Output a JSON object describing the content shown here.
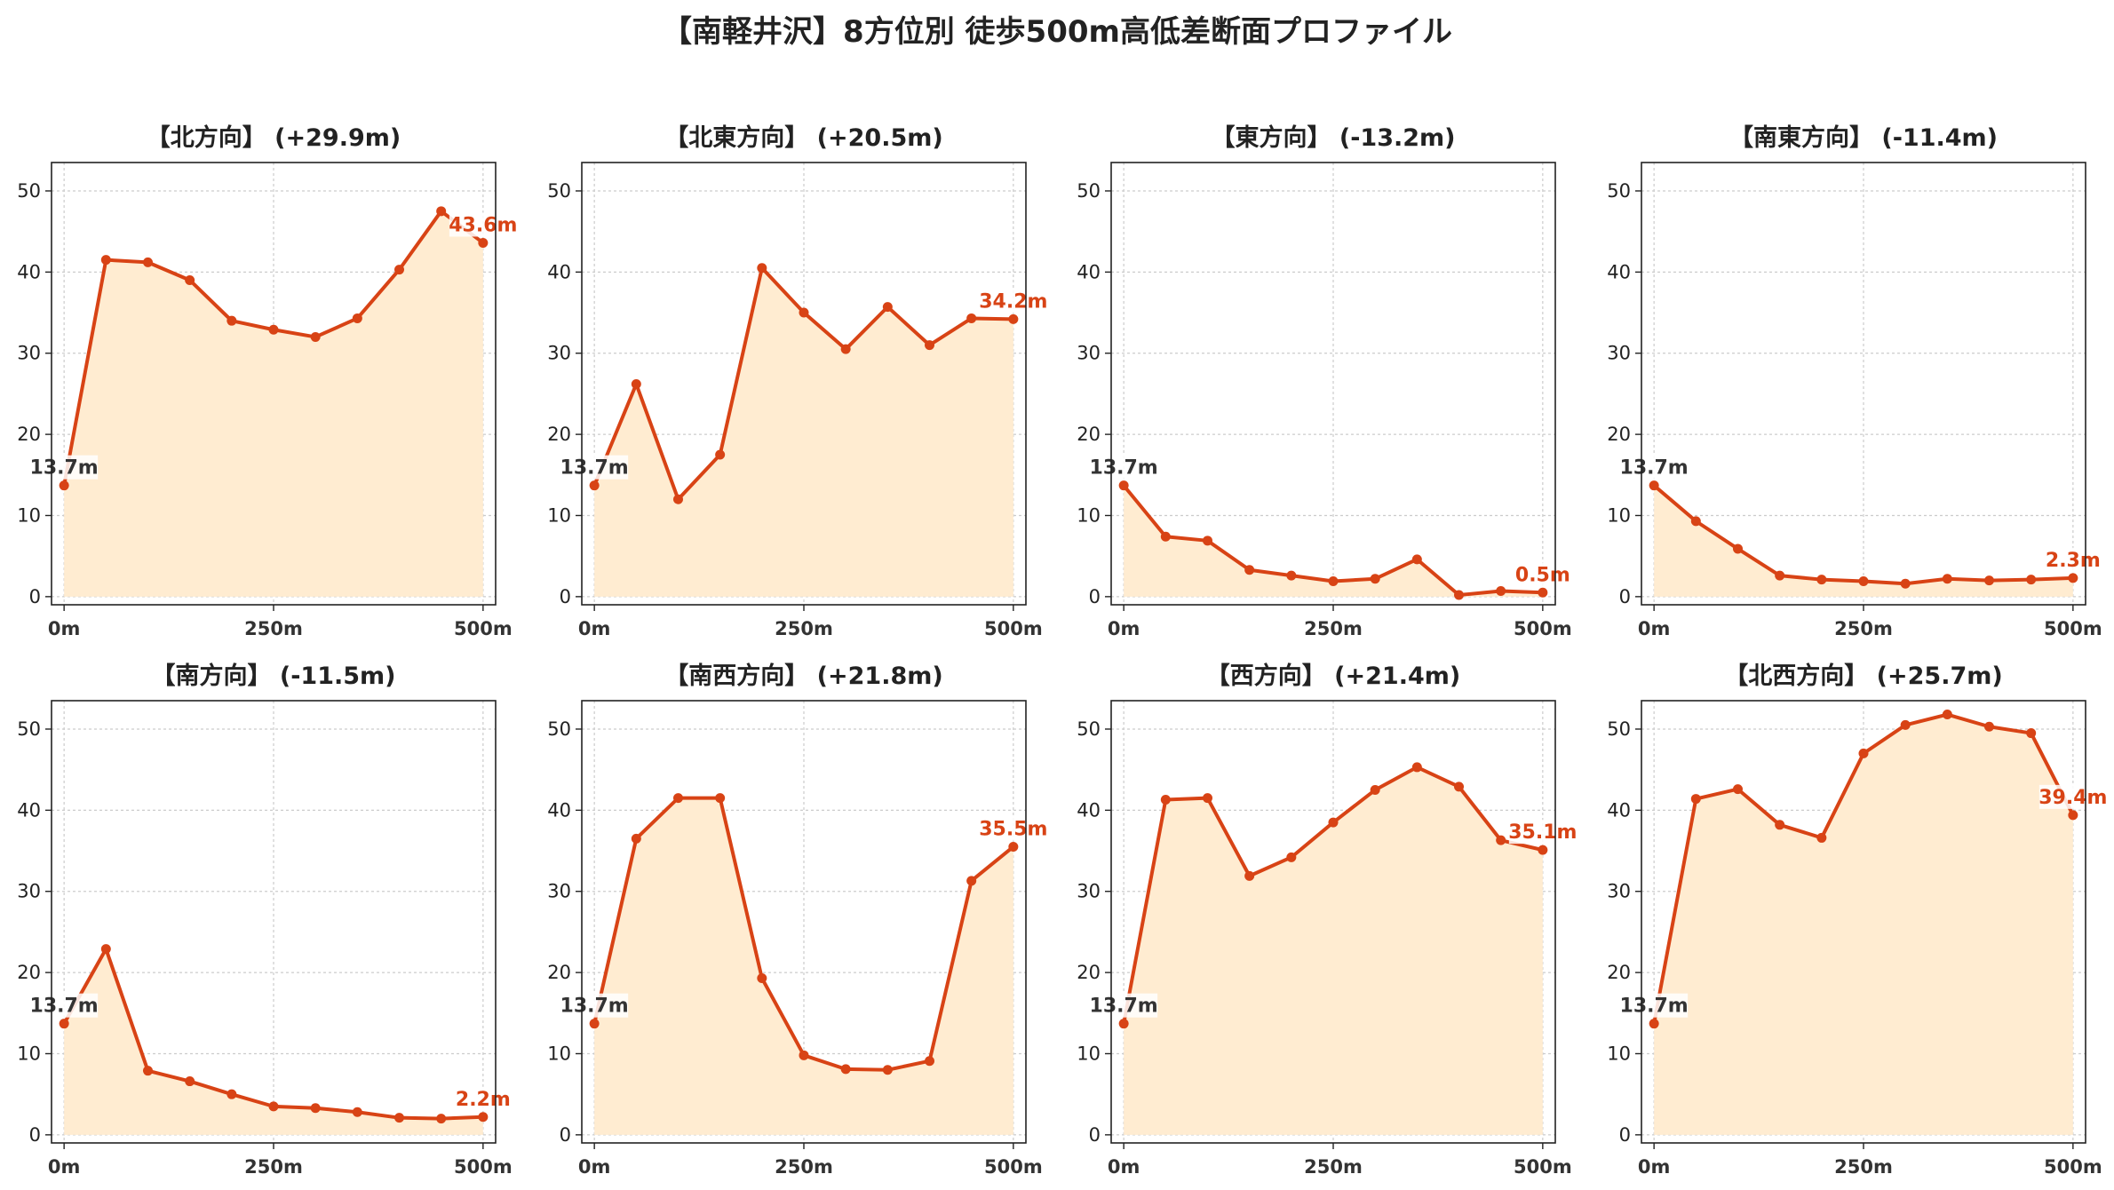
{
  "title": "【南軽井沢】8方位別 徒歩500m高低差断面プロファイル",
  "colors": {
    "line": "#d84315",
    "fill": "#ffecd1",
    "grid": "#cccccc",
    "start_label": "#333333",
    "end_label": "#d84315"
  },
  "chart_data": [
    {
      "type": "area",
      "title": "【北方向】 (+29.9m)",
      "x": [
        0,
        50,
        100,
        150,
        200,
        250,
        300,
        350,
        400,
        450,
        500
      ],
      "values": [
        13.7,
        41.5,
        41.2,
        39,
        34,
        32.9,
        32,
        34.3,
        40.3,
        47.5,
        43.6
      ],
      "xticks": [
        "0m",
        "250m",
        "500m"
      ],
      "yticks": [
        "0",
        "10",
        "20",
        "30",
        "40",
        "50"
      ],
      "ylim": [
        -1,
        53.5
      ],
      "start_label": "13.7m",
      "end_label": "43.6m",
      "grid": true
    },
    {
      "type": "area",
      "title": "【北東方向】 (+20.5m)",
      "x": [
        0,
        50,
        100,
        150,
        200,
        250,
        300,
        350,
        400,
        450,
        500
      ],
      "values": [
        13.7,
        26.2,
        12,
        17.5,
        40.5,
        35,
        30.5,
        35.7,
        31,
        34.3,
        34.2
      ],
      "xticks": [
        "0m",
        "250m",
        "500m"
      ],
      "yticks": [
        "0",
        "10",
        "20",
        "30",
        "40",
        "50"
      ],
      "ylim": [
        -1,
        53.5
      ],
      "start_label": "13.7m",
      "end_label": "34.2m",
      "grid": true
    },
    {
      "type": "area",
      "title": "【東方向】 (-13.2m)",
      "x": [
        0,
        50,
        100,
        150,
        200,
        250,
        300,
        350,
        400,
        450,
        500
      ],
      "values": [
        13.7,
        7.4,
        6.9,
        3.3,
        2.6,
        1.9,
        2.2,
        4.6,
        0.2,
        0.7,
        0.5
      ],
      "xticks": [
        "0m",
        "250m",
        "500m"
      ],
      "yticks": [
        "0",
        "10",
        "20",
        "30",
        "40",
        "50"
      ],
      "ylim": [
        -1,
        53.5
      ],
      "start_label": "13.7m",
      "end_label": "0.5m",
      "grid": true
    },
    {
      "type": "area",
      "title": "【南東方向】 (-11.4m)",
      "x": [
        0,
        50,
        100,
        150,
        200,
        250,
        300,
        350,
        400,
        450,
        500
      ],
      "values": [
        13.7,
        9.3,
        5.9,
        2.6,
        2.1,
        1.9,
        1.6,
        2.2,
        2,
        2.1,
        2.3
      ],
      "xticks": [
        "0m",
        "250m",
        "500m"
      ],
      "yticks": [
        "0",
        "10",
        "20",
        "30",
        "40",
        "50"
      ],
      "ylim": [
        -1,
        53.5
      ],
      "start_label": "13.7m",
      "end_label": "2.3m",
      "grid": true
    },
    {
      "type": "area",
      "title": "【南方向】 (-11.5m)",
      "x": [
        0,
        50,
        100,
        150,
        200,
        250,
        300,
        350,
        400,
        450,
        500
      ],
      "values": [
        13.7,
        22.9,
        7.9,
        6.6,
        5,
        3.5,
        3.3,
        2.8,
        2.1,
        2,
        2.2
      ],
      "xticks": [
        "0m",
        "250m",
        "500m"
      ],
      "yticks": [
        "0",
        "10",
        "20",
        "30",
        "40",
        "50"
      ],
      "ylim": [
        -1,
        53.5
      ],
      "start_label": "13.7m",
      "end_label": "2.2m",
      "grid": true
    },
    {
      "type": "area",
      "title": "【南西方向】 (+21.8m)",
      "x": [
        0,
        50,
        100,
        150,
        200,
        250,
        300,
        350,
        400,
        450,
        500
      ],
      "values": [
        13.7,
        36.5,
        41.5,
        41.5,
        19.3,
        9.8,
        8.1,
        8,
        9.1,
        31.3,
        35.5
      ],
      "xticks": [
        "0m",
        "250m",
        "500m"
      ],
      "yticks": [
        "0",
        "10",
        "20",
        "30",
        "40",
        "50"
      ],
      "ylim": [
        -1,
        53.5
      ],
      "start_label": "13.7m",
      "end_label": "35.5m",
      "grid": true
    },
    {
      "type": "area",
      "title": "【西方向】 (+21.4m)",
      "x": [
        0,
        50,
        100,
        150,
        200,
        250,
        300,
        350,
        400,
        450,
        500
      ],
      "values": [
        13.7,
        41.3,
        41.5,
        31.9,
        34.2,
        38.5,
        42.5,
        45.3,
        42.9,
        36.3,
        35.1
      ],
      "xticks": [
        "0m",
        "250m",
        "500m"
      ],
      "yticks": [
        "0",
        "10",
        "20",
        "30",
        "40",
        "50"
      ],
      "ylim": [
        -1,
        53.5
      ],
      "start_label": "13.7m",
      "end_label": "35.1m",
      "grid": true
    },
    {
      "type": "area",
      "title": "【北西方向】 (+25.7m)",
      "x": [
        0,
        50,
        100,
        150,
        200,
        250,
        300,
        350,
        400,
        450,
        500
      ],
      "values": [
        13.7,
        41.4,
        42.6,
        38.2,
        36.6,
        47,
        50.5,
        51.8,
        50.3,
        49.5,
        39.4
      ],
      "xticks": [
        "0m",
        "250m",
        "500m"
      ],
      "yticks": [
        "0",
        "10",
        "20",
        "30",
        "40",
        "50"
      ],
      "ylim": [
        -1,
        53.5
      ],
      "start_label": "13.7m",
      "end_label": "39.4m",
      "grid": true
    }
  ]
}
